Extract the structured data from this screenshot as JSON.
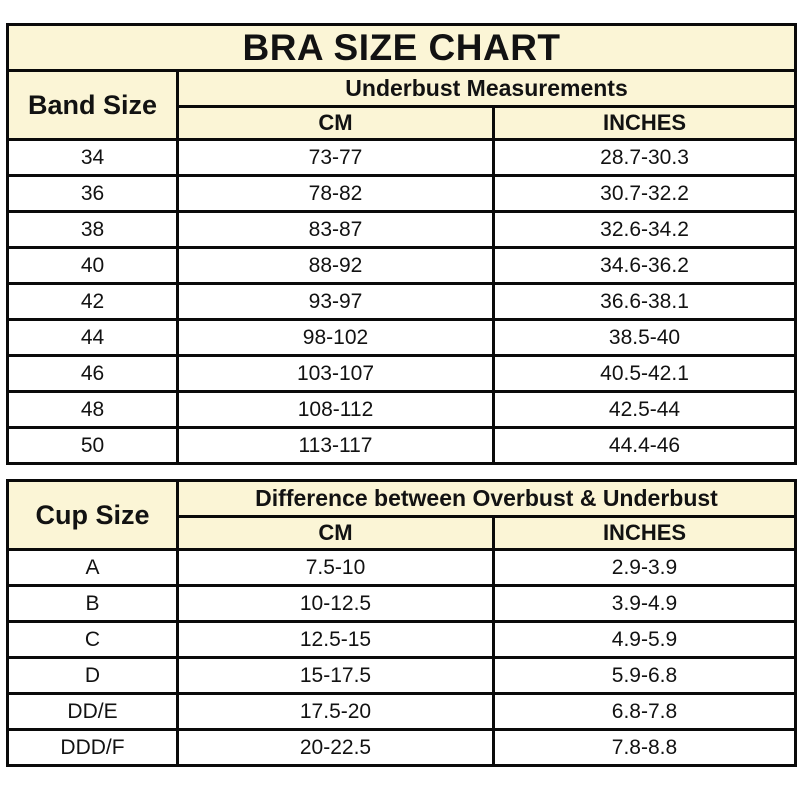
{
  "colors": {
    "header_bg": "#FBF5D6",
    "border": "#0A0A0A",
    "text": "#121212",
    "page_bg": "#FFFFFF"
  },
  "chart_data": [
    {
      "type": "table",
      "title": "BRA SIZE CHART",
      "row_header": "Band Size",
      "group_header": "Underbust Measurements",
      "columns": [
        "CM",
        "INCHES"
      ],
      "rows": [
        {
          "label": "34",
          "cm": "73-77",
          "inches": "28.7-30.3"
        },
        {
          "label": "36",
          "cm": "78-82",
          "inches": "30.7-32.2"
        },
        {
          "label": "38",
          "cm": "83-87",
          "inches": "32.6-34.2"
        },
        {
          "label": "40",
          "cm": "88-92",
          "inches": "34.6-36.2"
        },
        {
          "label": "42",
          "cm": "93-97",
          "inches": "36.6-38.1"
        },
        {
          "label": "44",
          "cm": "98-102",
          "inches": "38.5-40"
        },
        {
          "label": "46",
          "cm": "103-107",
          "inches": "40.5-42.1"
        },
        {
          "label": "48",
          "cm": "108-112",
          "inches": "42.5-44"
        },
        {
          "label": "50",
          "cm": "113-117",
          "inches": "44.4-46"
        }
      ]
    },
    {
      "type": "table",
      "title": "",
      "row_header": "Cup Size",
      "group_header": "Difference between Overbust & Underbust",
      "columns": [
        "CM",
        "INCHES"
      ],
      "rows": [
        {
          "label": "A",
          "cm": "7.5-10",
          "inches": "2.9-3.9"
        },
        {
          "label": "B",
          "cm": "10-12.5",
          "inches": "3.9-4.9"
        },
        {
          "label": "C",
          "cm": "12.5-15",
          "inches": "4.9-5.9"
        },
        {
          "label": "D",
          "cm": "15-17.5",
          "inches": "5.9-6.8"
        },
        {
          "label": "DD/E",
          "cm": "17.5-20",
          "inches": "6.8-7.8"
        },
        {
          "label": "DDD/F",
          "cm": "20-22.5",
          "inches": "7.8-8.8"
        }
      ]
    }
  ]
}
